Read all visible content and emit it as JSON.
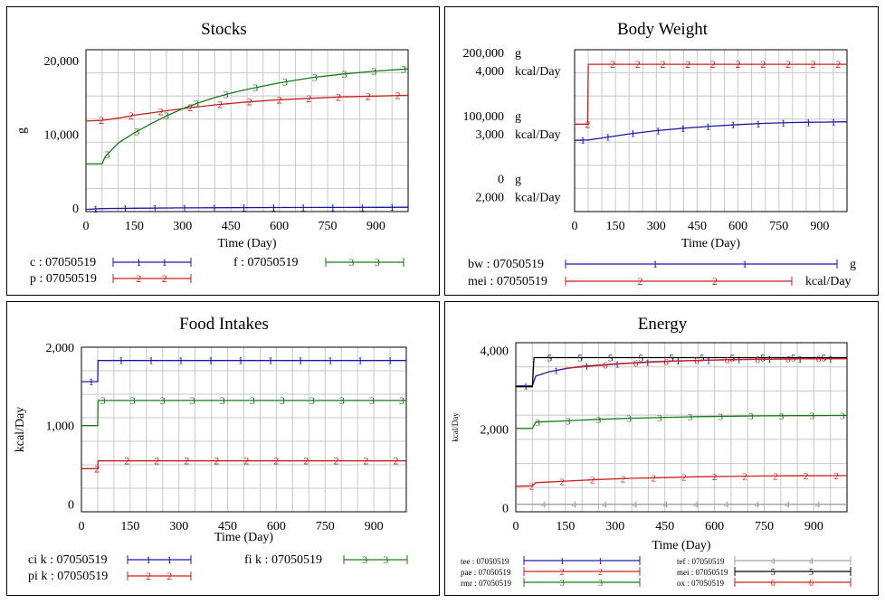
{
  "colors": {
    "s1": "#1a1aa6",
    "s2": "#cc1f1f",
    "s3": "#1a7a1a",
    "s4": "#a0a0a0",
    "s5": "#000000",
    "s6": "#cc1f1f"
  },
  "chart_data": [
    {
      "type": "line",
      "title": "Stocks",
      "xlabel": "Time (Day)",
      "ylabel": "g",
      "xlim": [
        0,
        1000
      ],
      "ylim": [
        -500,
        21500
      ],
      "x_ticks": [
        0,
        150,
        300,
        450,
        600,
        750,
        900
      ],
      "y_ticks": [
        {
          "v": 0,
          "label": "0"
        },
        {
          "v": 10000,
          "label": "10,000"
        },
        {
          "v": 20000,
          "label": "20,000"
        }
      ],
      "grid": true,
      "series": [
        {
          "name": "c : 07050519",
          "marker": "1",
          "color": "s1",
          "x": [
            0,
            50,
            150,
            300,
            450,
            600,
            750,
            900,
            1000
          ],
          "y": [
            -200,
            -100,
            -50,
            0,
            30,
            50,
            70,
            80,
            90
          ]
        },
        {
          "name": "p : 07050519",
          "marker": "2",
          "color": "s2",
          "x": [
            0,
            50,
            100,
            150,
            200,
            250,
            300,
            400,
            500,
            600,
            700,
            800,
            900,
            1000
          ],
          "y": [
            11800,
            11900,
            12200,
            12600,
            12900,
            13200,
            13500,
            14000,
            14400,
            14700,
            14900,
            15100,
            15200,
            15300
          ]
        },
        {
          "name": "f : 07050519",
          "marker": "3",
          "color": "s3",
          "x": [
            0,
            50,
            60,
            100,
            150,
            200,
            250,
            300,
            350,
            400,
            450,
            500,
            600,
            700,
            800,
            900,
            1000
          ],
          "y": [
            6000,
            6000,
            7000,
            8800,
            10200,
            11400,
            12500,
            13500,
            14300,
            15000,
            15600,
            16100,
            17000,
            17700,
            18200,
            18600,
            18900
          ]
        }
      ]
    },
    {
      "type": "line",
      "title": "Body Weight",
      "xlabel": "Time (Day)",
      "xlim": [
        0,
        1000
      ],
      "x_ticks": [
        0,
        150,
        300,
        450,
        600,
        750,
        900
      ],
      "y_tick_rows": [
        {
          "value": "200,000",
          "unit": "g"
        },
        {
          "value": "4,000",
          "unit": "kcal/Day"
        },
        {
          "value": "100,000",
          "unit": "g"
        },
        {
          "value": "3,000",
          "unit": "kcal/Day"
        },
        {
          "value": "0",
          "unit": "g"
        },
        {
          "value": "2,000",
          "unit": "kcal/Day"
        }
      ],
      "grid": true,
      "series": [
        {
          "name": "bw : 07050519",
          "unit": "g",
          "marker": "1",
          "color": "s1",
          "ylim": [
            0,
            200000
          ],
          "x": [
            0,
            50,
            100,
            200,
            300,
            400,
            500,
            600,
            700,
            800,
            900,
            1000
          ],
          "y": [
            88000,
            88500,
            91000,
            96000,
            100000,
            103000,
            105500,
            107500,
            109000,
            110000,
            110500,
            111000
          ]
        },
        {
          "name": "mei : 07050519",
          "unit": "kcal/Day",
          "marker": "2",
          "color": "s2",
          "ylim": [
            2000,
            4000
          ],
          "x": [
            0,
            48,
            50,
            1000
          ],
          "y": [
            3080,
            3080,
            3820,
            3820
          ]
        }
      ]
    },
    {
      "type": "line",
      "title": "Food Intakes",
      "xlabel": "Time (Day)",
      "ylabel": "kcal/Day",
      "xlim": [
        0,
        1000
      ],
      "ylim": [
        -100,
        2000
      ],
      "x_ticks": [
        0,
        150,
        300,
        450,
        600,
        750,
        900
      ],
      "y_ticks": [
        {
          "v": 0,
          "label": "0"
        },
        {
          "v": 1000,
          "label": "1,000"
        },
        {
          "v": 2000,
          "label": "2,000"
        }
      ],
      "grid": true,
      "series": [
        {
          "name": "ci k : 07050519",
          "marker": "1",
          "color": "s1",
          "x": [
            0,
            50,
            51,
            1000
          ],
          "y": [
            1560,
            1560,
            1830,
            1830
          ]
        },
        {
          "name": "pi k : 07050519",
          "marker": "2",
          "color": "s2",
          "x": [
            0,
            50,
            51,
            1000
          ],
          "y": [
            450,
            450,
            550,
            550
          ]
        },
        {
          "name": "fi k : 07050519",
          "marker": "3",
          "color": "s3",
          "x": [
            0,
            50,
            51,
            1000
          ],
          "y": [
            1000,
            1000,
            1320,
            1320
          ]
        }
      ]
    },
    {
      "type": "line",
      "title": "Energy",
      "xlabel": "Time (Day)",
      "ylabel": "kcal/Day",
      "xlim": [
        0,
        1000
      ],
      "ylim": [
        -100,
        4200
      ],
      "x_ticks": [
        0,
        150,
        300,
        450,
        600,
        750,
        900
      ],
      "y_ticks": [
        {
          "v": 0,
          "label": "0"
        },
        {
          "v": 2000,
          "label": "2,000"
        },
        {
          "v": 4000,
          "label": "4,000"
        }
      ],
      "grid": true,
      "series": [
        {
          "name": "tee : 07050519",
          "marker": "1",
          "color": "s1",
          "x": [
            0,
            50,
            60,
            100,
            150,
            200,
            300,
            400,
            500,
            600,
            700,
            800,
            900,
            1000
          ],
          "y": [
            3100,
            3100,
            3350,
            3460,
            3540,
            3600,
            3660,
            3710,
            3740,
            3760,
            3775,
            3785,
            3790,
            3795
          ]
        },
        {
          "name": "pae : 07050519",
          "marker": "2",
          "color": "s2",
          "x": [
            0,
            50,
            60,
            150,
            250,
            350,
            450,
            550,
            650,
            750,
            850,
            1000
          ],
          "y": [
            550,
            560,
            640,
            680,
            720,
            750,
            770,
            790,
            800,
            810,
            815,
            820
          ]
        },
        {
          "name": "rmr : 07050519",
          "marker": "3",
          "color": "s3",
          "x": [
            0,
            50,
            60,
            150,
            250,
            350,
            450,
            550,
            650,
            750,
            850,
            1000
          ],
          "y": [
            2020,
            2020,
            2180,
            2210,
            2250,
            2280,
            2300,
            2320,
            2330,
            2340,
            2345,
            2350
          ]
        },
        {
          "name": "tef : 07050519",
          "marker": "4",
          "color": "s4",
          "x": [
            0,
            1000
          ],
          "y": [
            90,
            90
          ]
        },
        {
          "name": "mei : 07050519",
          "marker": "5",
          "color": "s5",
          "x": [
            0,
            50,
            55,
            1000
          ],
          "y": [
            3080,
            3080,
            3820,
            3820
          ]
        },
        {
          "name": "ox : 07050519",
          "marker": "6",
          "color": "s6",
          "x": [
            150,
            250,
            350,
            450,
            550,
            650,
            750,
            850,
            950,
            1000
          ],
          "y": [
            3550,
            3620,
            3680,
            3720,
            3750,
            3770,
            3780,
            3790,
            3793,
            3795
          ]
        }
      ]
    }
  ]
}
